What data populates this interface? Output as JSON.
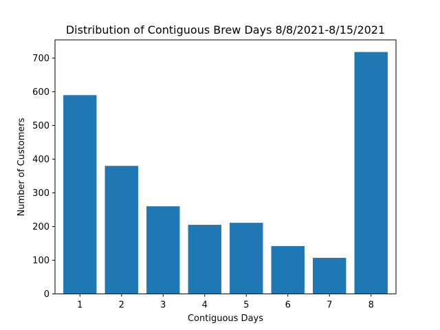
{
  "chart_data": {
    "type": "bar",
    "title": "Distribution of Contiguous Brew Days 8/8/2021-8/15/2021",
    "xlabel": "Contiguous Days",
    "ylabel": "Number of Customers",
    "categories": [
      "1",
      "2",
      "3",
      "4",
      "5",
      "6",
      "7",
      "8"
    ],
    "values": [
      590,
      380,
      260,
      205,
      211,
      142,
      107,
      718
    ],
    "yticks": [
      0,
      100,
      200,
      300,
      400,
      500,
      600,
      700
    ],
    "ylim": [
      0,
      754
    ],
    "bar_color": "#1f77b4",
    "grid": false,
    "legend": "none"
  }
}
